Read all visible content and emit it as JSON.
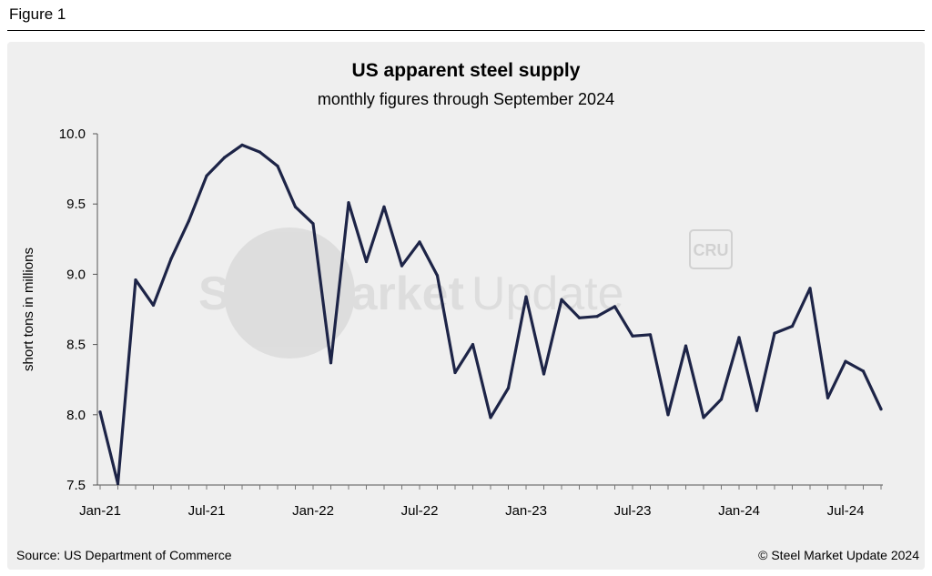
{
  "figure_label": "Figure 1",
  "source": "Source: US Department of Commerce",
  "copyright": "© Steel Market Update 2024",
  "watermark": {
    "text_bold": "SteelMarket",
    "text_light": "Update",
    "logo": "CRU"
  },
  "colors": {
    "line": "#1d2447",
    "panel": "#efefef",
    "axis": "#555555"
  },
  "chart_data": {
    "type": "line",
    "title": "US apparent steel supply",
    "subtitle": "monthly figures through September 2024",
    "xlabel": "",
    "ylabel": "short tons in millions",
    "ylim": [
      7.5,
      10.0
    ],
    "yticks": [
      "10.0",
      "9.5",
      "9.0",
      "8.5",
      "8.0",
      "7.5"
    ],
    "xtick_labels": [
      "Jan-21",
      "Jul-21",
      "Jan-22",
      "Jul-22",
      "Jan-23",
      "Jul-23",
      "Jan-24",
      "Jul-24"
    ],
    "xtick_months": [
      0,
      6,
      12,
      18,
      24,
      30,
      36,
      42
    ],
    "grid": false,
    "series": [
      {
        "name": "US apparent steel supply",
        "x": [
          "Jan-21",
          "Feb-21",
          "Mar-21",
          "Apr-21",
          "May-21",
          "Jun-21",
          "Jul-21",
          "Aug-21",
          "Sep-21",
          "Oct-21",
          "Nov-21",
          "Dec-21",
          "Jan-22",
          "Feb-22",
          "Mar-22",
          "Apr-22",
          "May-22",
          "Jun-22",
          "Jul-22",
          "Aug-22",
          "Sep-22",
          "Oct-22",
          "Nov-22",
          "Dec-22",
          "Jan-23",
          "Feb-23",
          "Mar-23",
          "Apr-23",
          "May-23",
          "Jun-23",
          "Jul-23",
          "Aug-23",
          "Sep-23",
          "Oct-23",
          "Nov-23",
          "Dec-23",
          "Jan-24",
          "Feb-24",
          "Mar-24",
          "Apr-24",
          "May-24",
          "Jun-24",
          "Jul-24",
          "Aug-24",
          "Sep-24"
        ],
        "values": [
          8.02,
          7.51,
          8.96,
          8.78,
          9.11,
          9.38,
          9.7,
          9.83,
          9.92,
          9.87,
          9.77,
          9.48,
          9.36,
          8.37,
          9.51,
          9.09,
          9.48,
          9.06,
          9.23,
          8.99,
          8.3,
          8.5,
          7.98,
          8.19,
          8.84,
          8.29,
          8.82,
          8.69,
          8.7,
          8.77,
          8.56,
          8.57,
          8.0,
          8.49,
          7.98,
          8.11,
          8.55,
          8.03,
          8.58,
          8.63,
          8.9,
          8.12,
          8.38,
          8.31,
          8.04
        ]
      }
    ]
  }
}
